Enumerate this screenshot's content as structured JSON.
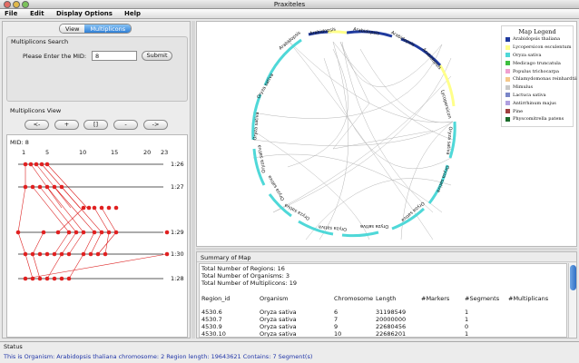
{
  "app": {
    "title": "Praxiteles"
  },
  "menu": [
    "File",
    "Edit",
    "Display Options",
    "Help"
  ],
  "tabs": {
    "view": "View",
    "multiplicons": "Multiplicons"
  },
  "search": {
    "group_title": "Multiplicons Search",
    "mid_label": "Please Enter the MID:",
    "mid_value": "8",
    "submit": "Submit"
  },
  "multiplicons_view": {
    "title": "Multiplicons View",
    "buttons": [
      "<-",
      "+",
      "[]",
      "-",
      "->"
    ],
    "mid_text": "MID: 8",
    "scale": [
      "1",
      "5",
      "10",
      "15",
      "20",
      "23"
    ],
    "rows": [
      "1:26",
      "1:27",
      "1:29",
      "1:30",
      "1:28"
    ]
  },
  "colors": {
    "blue": "#1f3a9e",
    "cyan": "#4fd8d8",
    "yellow": "#ffff8a",
    "marker_red": "#e02020",
    "status_text": "#2035a8"
  },
  "map_legend": {
    "title": "Map Legend",
    "items": [
      {
        "name": "Arabidopsis thaliana",
        "color": "#1f3a9e"
      },
      {
        "name": "Lycopersicon esculentum",
        "color": "#ffff8a"
      },
      {
        "name": "Oryza sativa",
        "color": "#4fd8d8"
      },
      {
        "name": "Medicago truncatula",
        "color": "#3fbf3f"
      },
      {
        "name": "Populus trichocarpa",
        "color": "#f0a0d0"
      },
      {
        "name": "Chlamydomonas reinhardtii",
        "color": "#f5c88a"
      },
      {
        "name": "Mimulus",
        "color": "#c8c8c8"
      },
      {
        "name": "Lactuca sativa",
        "color": "#7a86c8"
      },
      {
        "name": "Antirrhinum majus",
        "color": "#b0a0e0"
      },
      {
        "name": "Pine",
        "color": "#a04040"
      },
      {
        "name": "Physcomitrella patens",
        "color": "#1a6a2a"
      }
    ]
  },
  "circle_labels": [
    "Arabidopsis",
    "Arabidopsis",
    "Arabidopsis",
    "Arabidopsis",
    "Arabidopsis",
    "Oryza sativa",
    "Oryza sativa",
    "Oryza sativa",
    "Oryza sativa",
    "Oryza sativa",
    "Oryza sativa",
    "Oryza sativa",
    "Oryza sativa",
    "Oryza sativa",
    "Oryza sativa",
    "Oryza sativa",
    "Oryza sativa",
    "Oryza sativa",
    "Oryza sativa",
    "Lycopersicon"
  ],
  "summary": {
    "title": "Summary of Map",
    "total_regions": "Total Number of Regions: 16",
    "total_organisms": "Total Number of Organisms: 3",
    "total_multiplicons": "Total Number of Multiplicons: 19",
    "columns": [
      "Region_id",
      "Organism",
      "Chromosome",
      "Length",
      "#Markers",
      "#Segments",
      "#Multiplicans"
    ],
    "rows": [
      [
        "4530.6",
        "Oryza sativa",
        "6",
        "31198549",
        "",
        "1",
        ""
      ],
      [
        "4530.7",
        "Oryza sativa",
        "7",
        "20000000",
        "",
        "1",
        ""
      ],
      [
        "4530.9",
        "Oryza sativa",
        "9",
        "22680456",
        "",
        "0",
        ""
      ],
      [
        "4530.10",
        "Oryza sativa",
        "10",
        "22686201",
        "",
        "1",
        ""
      ]
    ]
  },
  "status": {
    "title": "Status",
    "message": "This is Organism: Arabidopsis thaliana chromosome: 2 Region length: 19643621 Contains: 7 Segment(s)"
  }
}
